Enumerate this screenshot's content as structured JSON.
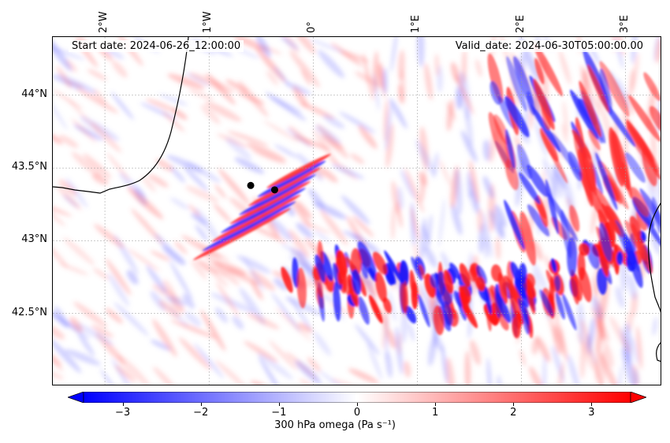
{
  "header": {
    "start_date": "Start date: 2024-06-26_12:00:00",
    "valid_date": "Valid_date: 2024-06-30T05:00:00.00"
  },
  "map": {
    "projection": "PlateCarree",
    "lon_range": [
      -2.5,
      3.35
    ],
    "lat_range": [
      42.0,
      44.4
    ],
    "lon_ticks": [
      {
        "value": -2,
        "label": "2°W"
      },
      {
        "value": -1,
        "label": "1°W"
      },
      {
        "value": 0,
        "label": "0°"
      },
      {
        "value": 1,
        "label": "1°E"
      },
      {
        "value": 2,
        "label": "2°E"
      },
      {
        "value": 3,
        "label": "3°E"
      }
    ],
    "lat_ticks": [
      {
        "value": 44.0,
        "label": "44°N"
      },
      {
        "value": 43.5,
        "label": "43.5°N"
      },
      {
        "value": 43.0,
        "label": "43°N"
      },
      {
        "value": 42.5,
        "label": "42.5°N"
      }
    ],
    "gridlines": true,
    "markers": [
      {
        "lon": -0.6,
        "lat": 43.38
      },
      {
        "lon": -0.37,
        "lat": 43.35
      }
    ],
    "coastline_color": "#000000"
  },
  "colorbar": {
    "title": "300 hPa omega (Pa s⁻¹)",
    "min": -3.5,
    "max": 3.5,
    "ticks": [
      {
        "value": -3,
        "label": "−3"
      },
      {
        "value": -2,
        "label": "−2"
      },
      {
        "value": -1,
        "label": "−1"
      },
      {
        "value": 0,
        "label": "0"
      },
      {
        "value": 1,
        "label": "1"
      },
      {
        "value": 2,
        "label": "2"
      },
      {
        "value": 3,
        "label": "3"
      }
    ],
    "colormap": "bwr",
    "extend": "both",
    "colors": {
      "low": "#0000ff",
      "mid": "#ffffff",
      "high": "#ff0000"
    }
  }
}
